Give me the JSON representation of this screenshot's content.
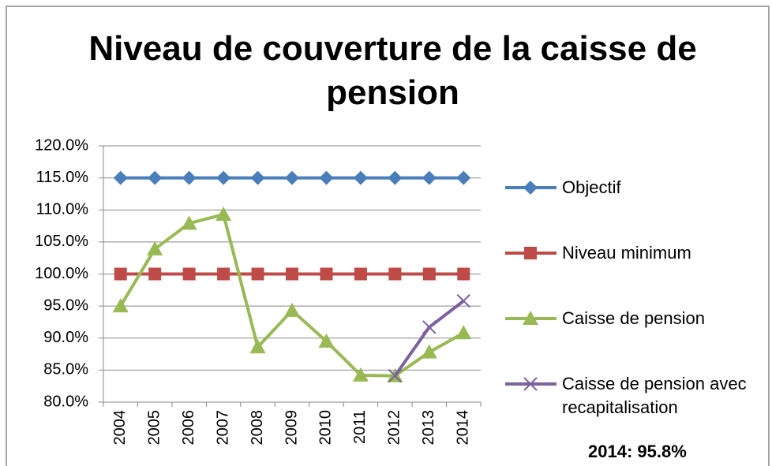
{
  "chart_data": {
    "type": "line",
    "title": "Niveau de couverture de la caisse de pension",
    "categories": [
      "2004",
      "2005",
      "2006",
      "2007",
      "2008",
      "2009",
      "2010",
      "2011",
      "2012",
      "2013",
      "2014"
    ],
    "series": [
      {
        "name": "Objectif",
        "color": "#4a7ebb",
        "marker": "diamond",
        "values": [
          115,
          115,
          115,
          115,
          115,
          115,
          115,
          115,
          115,
          115,
          115
        ]
      },
      {
        "name": "Niveau minimum",
        "color": "#be4b48",
        "marker": "square",
        "values": [
          100,
          100,
          100,
          100,
          100,
          100,
          100,
          100,
          100,
          100,
          100
        ]
      },
      {
        "name": "Caisse de pension",
        "color": "#98b954",
        "marker": "triangle",
        "values": [
          95.0,
          103.9,
          107.9,
          109.3,
          88.6,
          94.3,
          89.5,
          84.2,
          84.1,
          87.8,
          90.8
        ]
      },
      {
        "name": "Caisse de pension avec recapitalisation",
        "color": "#7d60a0",
        "marker": "x",
        "values": [
          null,
          null,
          null,
          null,
          null,
          null,
          null,
          null,
          84.1,
          91.7,
          95.8
        ]
      }
    ],
    "ylim": [
      80,
      120
    ],
    "yticks": [
      {
        "value": 80,
        "label": "80.0%"
      },
      {
        "value": 85,
        "label": "85.0%"
      },
      {
        "value": 90,
        "label": "90.0%"
      },
      {
        "value": 95,
        "label": "95.0%"
      },
      {
        "value": 100,
        "label": "100.0%"
      },
      {
        "value": 105,
        "label": "105.0%"
      },
      {
        "value": 110,
        "label": "110.0%"
      },
      {
        "value": 115,
        "label": "115.0%"
      },
      {
        "value": 120,
        "label": "120.0%"
      }
    ],
    "grid": true,
    "legend": "right",
    "annotation": "2014: 95.8%"
  }
}
